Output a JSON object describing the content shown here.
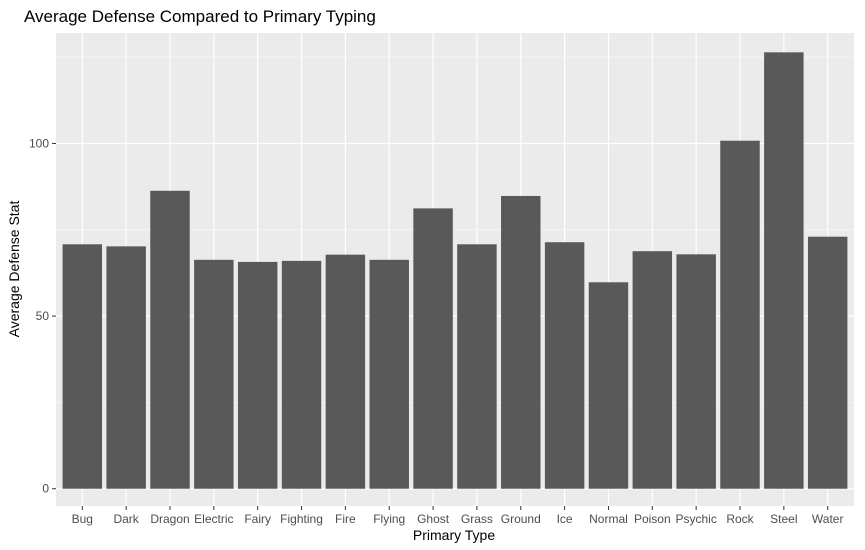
{
  "chart_data": {
    "type": "bar",
    "title": "Average Defense Compared to Primary Typing",
    "xlabel": "Primary Type",
    "ylabel": "Average Defense Stat",
    "categories": [
      "Bug",
      "Dark",
      "Dragon",
      "Electric",
      "Fairy",
      "Fighting",
      "Fire",
      "Flying",
      "Ghost",
      "Grass",
      "Ground",
      "Ice",
      "Normal",
      "Poison",
      "Psychic",
      "Rock",
      "Steel",
      "Water"
    ],
    "values": [
      70.8,
      70.2,
      86.3,
      66.3,
      65.7,
      66.0,
      67.8,
      66.3,
      81.2,
      70.8,
      84.8,
      71.4,
      59.8,
      68.8,
      67.9,
      100.8,
      126.4,
      73.0
    ],
    "ylim": [
      -5,
      132
    ],
    "yticks": [
      0,
      50,
      100
    ],
    "grid": true,
    "colors": {
      "panel": "#ebebeb",
      "grid_major": "#ffffff",
      "grid_minor": "#f5f5f5",
      "bar": "#595959",
      "tick": "#333333"
    }
  }
}
